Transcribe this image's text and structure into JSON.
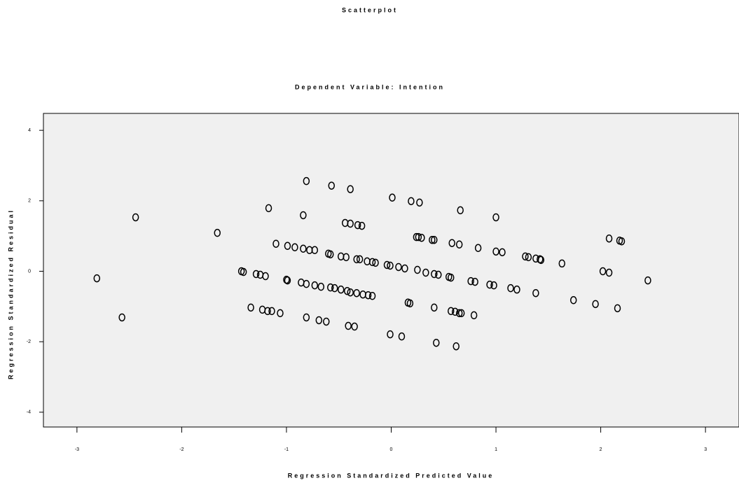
{
  "chart_data": {
    "type": "scatter",
    "title": "Scatterplot",
    "subtitle": "Dependent Variable: Intention",
    "x_label": "Regression Standardized Predicted Value",
    "y_label": "Regression Standardized Residual",
    "xlim": [
      -3.32,
      3.32
    ],
    "ylim": [
      -4.42,
      4.48
    ],
    "xticks": [
      -3,
      -2,
      -1,
      0,
      1,
      2,
      3
    ],
    "yticks": [
      -4,
      -2,
      0,
      2,
      4
    ],
    "color": "#000000",
    "series": [
      {
        "name": null,
        "color": "#000000",
        "x": [
          -2.81,
          -2.44,
          -2.57,
          -1.66,
          -1.17,
          -1.43,
          -1.41,
          -1.29,
          -1.25,
          -1.2,
          -1.34,
          -1.23,
          -1.18,
          -1.14,
          -1.06,
          -1.1,
          -0.99,
          -0.92,
          -0.84,
          -0.78,
          -0.73,
          -0.81,
          -0.84,
          -1.0,
          -0.99,
          -0.86,
          -0.81,
          -0.73,
          -0.67,
          -0.58,
          -0.54,
          -0.48,
          -0.42,
          -0.39,
          -0.33,
          -0.27,
          -0.22,
          -0.18,
          -0.81,
          -0.69,
          -0.62,
          -0.41,
          -0.35,
          -0.6,
          -0.58,
          -0.48,
          -0.43,
          -0.33,
          -0.3,
          -0.23,
          -0.18,
          -0.15,
          -0.04,
          -0.01,
          0.07,
          0.13,
          0.25,
          0.33,
          0.41,
          0.45,
          0.55,
          0.57,
          0.76,
          0.8,
          0.94,
          0.98,
          1.14,
          1.2,
          1.38,
          -0.57,
          -0.39,
          -0.44,
          -0.39,
          -0.32,
          -0.28,
          0.01,
          0.19,
          0.27,
          0.24,
          0.26,
          0.29,
          0.39,
          0.41,
          0.58,
          0.65,
          0.83,
          1.0,
          1.06,
          1.28,
          1.31,
          1.38,
          1.42,
          1.43,
          0.66,
          1.0,
          1.63,
          2.02,
          2.08,
          2.08,
          2.18,
          2.2,
          2.45,
          0.16,
          0.18,
          0.41,
          0.57,
          0.61,
          0.65,
          0.67,
          0.79,
          1.74,
          1.95,
          2.16,
          -0.01,
          0.1,
          0.43,
          0.62
        ],
        "values": [
          -0.2,
          1.53,
          -1.31,
          1.09,
          1.79,
          0.0,
          -0.02,
          -0.08,
          -0.1,
          -0.14,
          -1.03,
          -1.09,
          -1.13,
          -1.13,
          -1.19,
          0.78,
          0.72,
          0.68,
          0.64,
          0.6,
          0.6,
          2.56,
          1.59,
          -0.24,
          -0.26,
          -0.32,
          -0.36,
          -0.4,
          -0.44,
          -0.46,
          -0.48,
          -0.52,
          -0.56,
          -0.6,
          -0.62,
          -0.66,
          -0.68,
          -0.7,
          -1.31,
          -1.39,
          -1.43,
          -1.55,
          -1.57,
          0.5,
          0.48,
          0.42,
          0.4,
          0.34,
          0.34,
          0.28,
          0.26,
          0.24,
          0.18,
          0.16,
          0.12,
          0.08,
          0.04,
          -0.04,
          -0.08,
          -0.1,
          -0.16,
          -0.18,
          -0.28,
          -0.3,
          -0.38,
          -0.4,
          -0.48,
          -0.52,
          -0.62,
          2.43,
          2.33,
          1.37,
          1.35,
          1.31,
          1.29,
          2.09,
          1.99,
          1.95,
          0.97,
          0.97,
          0.95,
          0.89,
          0.89,
          0.8,
          0.76,
          0.66,
          0.56,
          0.54,
          0.42,
          0.4,
          0.36,
          0.34,
          0.32,
          1.73,
          1.53,
          0.22,
          0.0,
          -0.04,
          0.93,
          0.87,
          0.85,
          -0.26,
          -0.89,
          -0.91,
          -1.03,
          -1.13,
          -1.15,
          -1.19,
          -1.19,
          -1.25,
          -0.82,
          -0.93,
          -1.05,
          -1.79,
          -1.85,
          -2.03,
          -2.13
        ]
      }
    ]
  }
}
